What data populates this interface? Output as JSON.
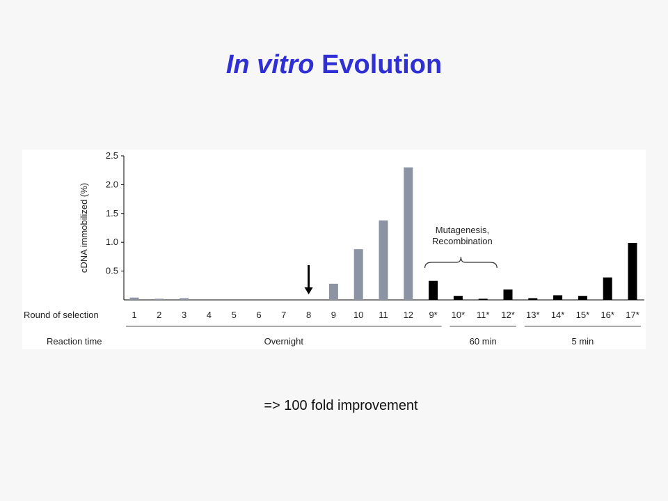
{
  "slide": {
    "title_italic": "In vitro",
    "title_rest": "Evolution",
    "note": "=> 100 fold improvement"
  },
  "colors": {
    "title": "#2f2fd6",
    "gray_bar": "#8c93a3",
    "black_bar": "#000000"
  },
  "chart_data": {
    "type": "bar",
    "ylabel": "cDNA immobilized (%)",
    "ylim": [
      0,
      2.5
    ],
    "yticks": [
      "0.5",
      "1.0",
      "1.5",
      "2.0",
      "2.5"
    ],
    "ytick_values": [
      0.5,
      1.0,
      1.5,
      2.0,
      2.5
    ],
    "row_label_round": "Round of selection",
    "row_label_time": "Reaction time",
    "categories": [
      "1",
      "2",
      "3",
      "4",
      "5",
      "6",
      "7",
      "8",
      "9",
      "10",
      "11",
      "12",
      "9*",
      "10*",
      "11*",
      "12*",
      "13*",
      "14*",
      "15*",
      "16*",
      "17*"
    ],
    "values": [
      0.04,
      0.02,
      0.03,
      0,
      0,
      0,
      0,
      0,
      0.28,
      0.88,
      1.38,
      2.3,
      0.33,
      0.07,
      0.02,
      0.18,
      0.03,
      0.08,
      0.07,
      0.39,
      0.99
    ],
    "bar_colors": [
      "gray",
      "gray",
      "gray",
      "gray",
      "gray",
      "gray",
      "gray",
      "gray",
      "gray",
      "gray",
      "gray",
      "gray",
      "black",
      "black",
      "black",
      "black",
      "black",
      "black",
      "black",
      "black",
      "black"
    ],
    "reaction_groups": [
      {
        "label": "Overnight",
        "from": 0,
        "to": 12
      },
      {
        "label": "60 min",
        "from": 13,
        "to": 15
      },
      {
        "label": "5 min",
        "from": 16,
        "to": 20
      }
    ],
    "annotation": {
      "line1": "Mutagenesis,",
      "line2": "Recombination"
    },
    "arrow_at_category": "8"
  }
}
